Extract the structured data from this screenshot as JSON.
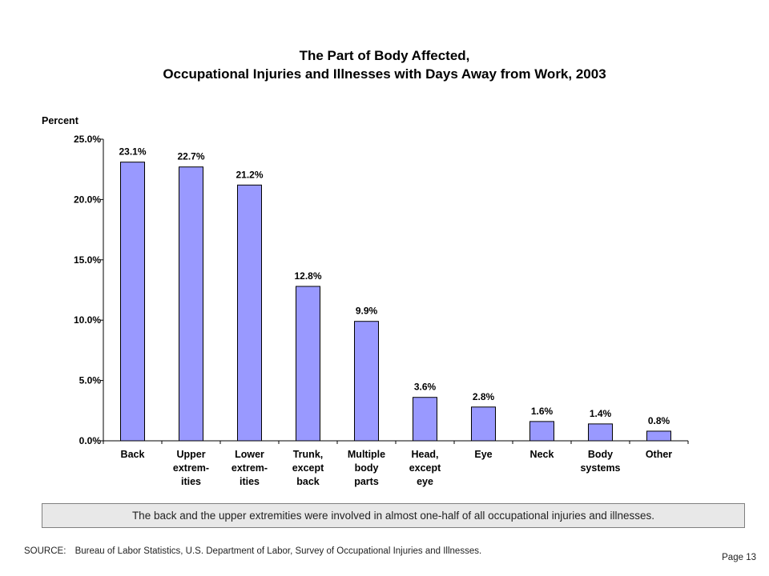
{
  "chart_data": {
    "type": "bar",
    "title": "The Part of Body Affected,",
    "subtitle": "Occupational Injuries and Illnesses with Days Away from Work, 2003",
    "ylabel": "Percent",
    "xlabel": "",
    "ylim": [
      0,
      25
    ],
    "yticks": [
      "0.0%",
      "5.0%",
      "10.0%",
      "15.0%",
      "20.0%",
      "25.0%"
    ],
    "grid": false,
    "bar_color": "#9999ff",
    "categories": [
      [
        "Back"
      ],
      [
        "Upper",
        "extrem-",
        "ities"
      ],
      [
        "Lower",
        "extrem-",
        "ities"
      ],
      [
        "Trunk,",
        "except",
        "back"
      ],
      [
        "Multiple",
        "body",
        "parts"
      ],
      [
        "Head,",
        "except",
        "eye"
      ],
      [
        "Eye"
      ],
      [
        "Neck"
      ],
      [
        "Body",
        "systems"
      ],
      [
        "Other"
      ]
    ],
    "values": [
      23.1,
      22.7,
      21.2,
      12.8,
      9.9,
      3.6,
      2.8,
      1.6,
      1.4,
      0.8
    ],
    "data_labels": [
      "23.1%",
      "22.7%",
      "21.2%",
      "12.8%",
      "9.9%",
      "3.6%",
      "2.8%",
      "1.6%",
      "1.4%",
      "0.8%"
    ]
  },
  "note": "The back and the upper extremities were involved in almost one-half of all occupational injuries and illnesses.",
  "source_label": "SOURCE:",
  "source_text": "Bureau of Labor Statistics, U.S. Department of Labor, Survey of Occupational Injuries and Illnesses.",
  "page_number": "Page 13"
}
